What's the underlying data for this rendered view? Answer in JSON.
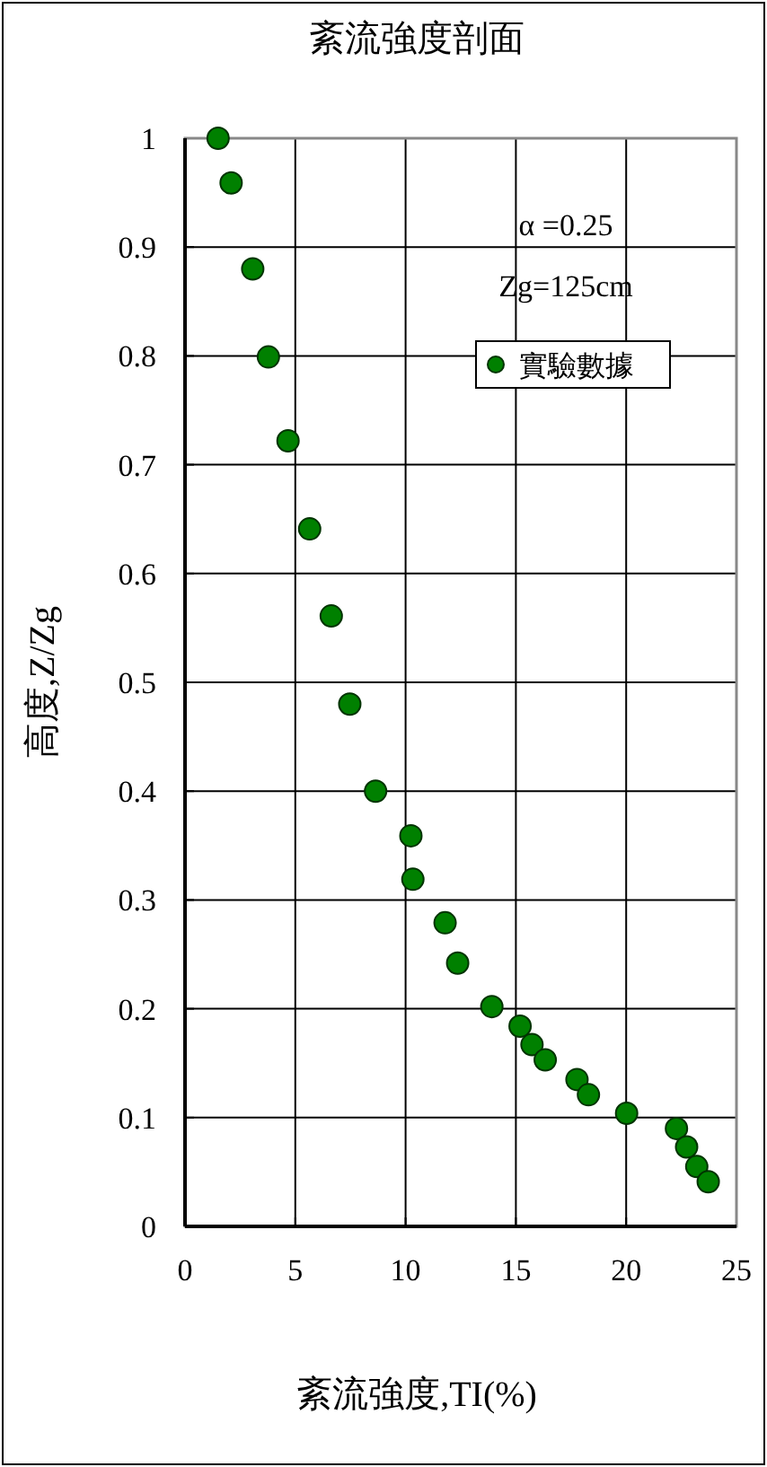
{
  "chart_data": {
    "type": "scatter",
    "title": "紊流強度剖面",
    "xlabel": "紊流強度,TI(%)",
    "ylabel": "高度,Z/Zg",
    "annotations": [
      "α =0.25",
      "Zg=125cm"
    ],
    "series": [
      {
        "name": "實驗數據",
        "color": "#008000",
        "x": [
          1.5,
          2.09,
          3.07,
          3.78,
          4.67,
          5.65,
          6.63,
          7.47,
          8.64,
          10.24,
          10.33,
          11.79,
          12.36,
          13.91,
          15.19,
          15.73,
          16.33,
          17.77,
          18.29,
          20.02,
          22.28,
          22.74,
          23.2,
          23.72
        ],
        "values": [
          1.0,
          0.959,
          0.88,
          0.799,
          0.722,
          0.641,
          0.561,
          0.48,
          0.4,
          0.359,
          0.319,
          0.279,
          0.242,
          0.202,
          0.184,
          0.167,
          0.153,
          0.135,
          0.121,
          0.104,
          0.09,
          0.073,
          0.055,
          0.041
        ]
      }
    ],
    "xlim": [
      0,
      25
    ],
    "xticks": [
      0,
      5,
      10,
      15,
      20,
      25
    ],
    "ylim": [
      0,
      1
    ],
    "yticks": [
      0,
      0.1,
      0.2,
      0.3,
      0.4,
      0.5,
      0.6,
      0.7,
      0.8,
      0.9,
      1
    ],
    "grid": true,
    "legend": "top right",
    "marker": "circle"
  }
}
